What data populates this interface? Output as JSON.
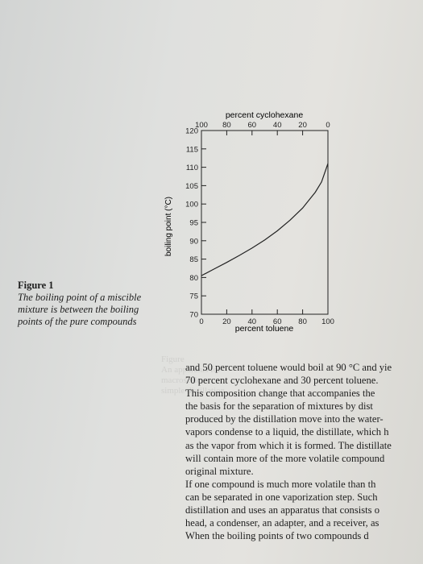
{
  "figure": {
    "title": "Figure 1",
    "caption": "The boiling point of a miscible mixture is between the boiling points of the pure compounds"
  },
  "chart_data": {
    "type": "line",
    "xlabel": "percent toluene",
    "top_xlabel": "percent cyclohexane",
    "ylabel": "boiling point (°C)",
    "xlim": [
      0,
      100
    ],
    "ylim": [
      70,
      120
    ],
    "x_ticks": [
      "0",
      "20",
      "40",
      "60",
      "80",
      "100"
    ],
    "top_x_ticks": [
      "100",
      "80",
      "60",
      "40",
      "20",
      "0"
    ],
    "y_ticks": [
      "70",
      "75",
      "80",
      "85",
      "90",
      "95",
      "100",
      "105",
      "110",
      "115",
      "120"
    ],
    "series": [
      {
        "x": [
          0,
          10,
          20,
          30,
          40,
          50,
          60,
          70,
          80,
          90,
          95,
          100
        ],
        "y": [
          80.5,
          82.3,
          84.1,
          86.0,
          88.0,
          90.2,
          92.7,
          95.6,
          98.9,
          103.2,
          106.0,
          111.0
        ]
      }
    ],
    "grid": false,
    "legend": "none"
  },
  "ghost_text": [
    "Figure",
    "An apparatus for macroscale",
    "simple distillation"
  ],
  "body": {
    "lines": [
      "and 50 percent toluene would boil at 90 °C and yie",
      "70 percent cyclohexane and 30 percent toluene.",
      "This composition change that accompanies the",
      "the basis for the separation of mixtures by dist",
      "produced by the distillation move into the water-",
      "vapors condense to a liquid, the distillate, which h",
      "as the vapor from which it is formed. The distillate",
      "will contain more of the more volatile compound",
      "original mixture.",
      "If one compound is much more volatile than th",
      "can be separated in one vaporization step. Such",
      "distillation and uses an apparatus that consists o",
      "head, a condenser, an adapter, and a receiver, as",
      "When the boiling points of two compounds d"
    ]
  }
}
